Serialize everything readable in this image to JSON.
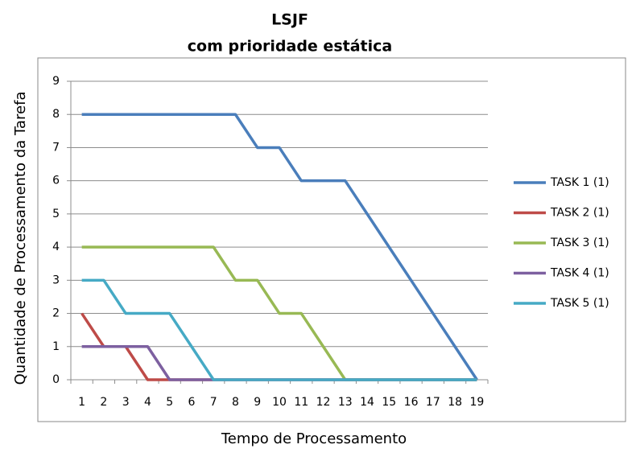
{
  "chart_data": {
    "type": "line",
    "title": "LSJF",
    "subtitle": "com prioridade estática",
    "x_label": "Tempo de Processamento",
    "y_label": "Quantidade de Processamento da Tarefa",
    "categories": [
      "1",
      "2",
      "3",
      "4",
      "5",
      "6",
      "7",
      "8",
      "9",
      "10",
      "11",
      "12",
      "13",
      "14",
      "15",
      "16",
      "17",
      "18",
      "19"
    ],
    "series": [
      {
        "name": "TASK 1 (1)",
        "color": "#4a7ebb",
        "values": [
          8,
          8,
          8,
          8,
          8,
          8,
          8,
          8,
          7,
          7,
          6,
          6,
          6,
          5,
          4,
          3,
          2,
          1,
          0
        ]
      },
      {
        "name": "TASK 2 (1)",
        "color": "#be4b48",
        "values": [
          2,
          1,
          1,
          0,
          0,
          0,
          0,
          0,
          0,
          0,
          0,
          0,
          0,
          0,
          0,
          0,
          0,
          0,
          0
        ]
      },
      {
        "name": "TASK 3 (1)",
        "color": "#98b954",
        "values": [
          4,
          4,
          4,
          4,
          4,
          4,
          4,
          3,
          3,
          2,
          2,
          1,
          0,
          0,
          0,
          0,
          0,
          0,
          0
        ]
      },
      {
        "name": "TASK 4 (1)",
        "color": "#7d60a0",
        "values": [
          1,
          1,
          1,
          1,
          0,
          0,
          0,
          0,
          0,
          0,
          0,
          0,
          0,
          0,
          0,
          0,
          0,
          0,
          0
        ]
      },
      {
        "name": "TASK 5 (1)",
        "color": "#46aac5",
        "values": [
          3,
          3,
          2,
          2,
          2,
          1,
          0,
          0,
          0,
          0,
          0,
          0,
          0,
          0,
          0,
          0,
          0,
          0,
          0
        ]
      }
    ],
    "ylim": [
      0,
      9
    ],
    "yticks": [
      0,
      1,
      2,
      3,
      4,
      5,
      6,
      7,
      8,
      9
    ],
    "grid": true,
    "legend": "right"
  }
}
